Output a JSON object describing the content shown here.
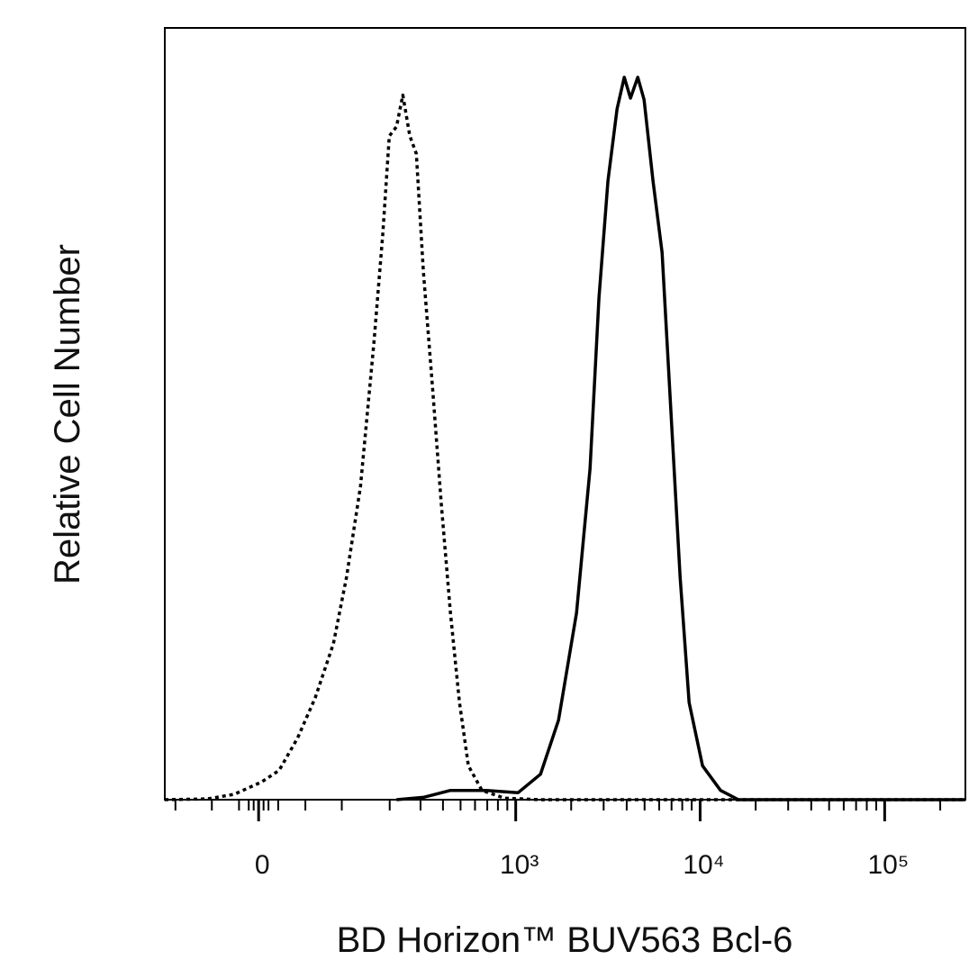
{
  "chart_data": {
    "type": "line",
    "x_label": "BD Horizon™ BUV563 Bcl-6",
    "y_label": "Relative Cell Number",
    "xscale": "biexponential",
    "xlim": [
      -118,
      273800
    ],
    "ylim": [
      0,
      100
    ],
    "xticks": [
      {
        "value": 0,
        "label": "0"
      },
      {
        "value": 1000,
        "label": "10³"
      },
      {
        "value": 10000,
        "label": "10⁴"
      },
      {
        "value": 100000,
        "label": "10⁵"
      }
    ],
    "xminorticks": [
      -100,
      -50,
      -20,
      -10,
      -5,
      5,
      10,
      20,
      50,
      100,
      200,
      300,
      400,
      500,
      600,
      700,
      800,
      900,
      2000,
      3000,
      4000,
      5000,
      6000,
      7000,
      8000,
      9000,
      20000,
      30000,
      40000,
      50000,
      60000,
      70000,
      80000,
      90000,
      200000
    ],
    "series": [
      {
        "style": "dotted",
        "color": "#000000",
        "x": [
          -118,
          -55,
          -25,
          3,
          21,
          41,
          62,
          87,
          108,
          133,
          161,
          182,
          199,
          219,
          238,
          261,
          284,
          311,
          350,
          392,
          440,
          493,
          552,
          655,
          868,
          1364,
          4195,
          273800
        ],
        "values": [
          0,
          0.1,
          0.7,
          2.3,
          3.8,
          8.0,
          13.2,
          20.2,
          28.9,
          40.6,
          59.2,
          73.2,
          86.0,
          87.2,
          91.3,
          86.0,
          83.7,
          68.5,
          53.4,
          38.2,
          24.2,
          12.6,
          4.4,
          1.2,
          0.2,
          0,
          0,
          0
        ]
      },
      {
        "style": "solid",
        "color": "#000000",
        "x": [
          219,
          311,
          440,
          693,
          1029,
          1364,
          1708,
          2138,
          2531,
          2830,
          3165,
          3546,
          3880,
          4195,
          4590,
          4968,
          5555,
          6217,
          6958,
          7785,
          8710,
          10300,
          12900,
          16140,
          273800
        ],
        "values": [
          0,
          0.3,
          1.2,
          1.2,
          0.9,
          3.3,
          10.3,
          24.2,
          42.9,
          65.0,
          80.2,
          89.5,
          93.6,
          90.9,
          93.6,
          90.7,
          80.2,
          70.9,
          49.9,
          28.9,
          12.6,
          4.4,
          1.2,
          0,
          0
        ]
      }
    ]
  }
}
